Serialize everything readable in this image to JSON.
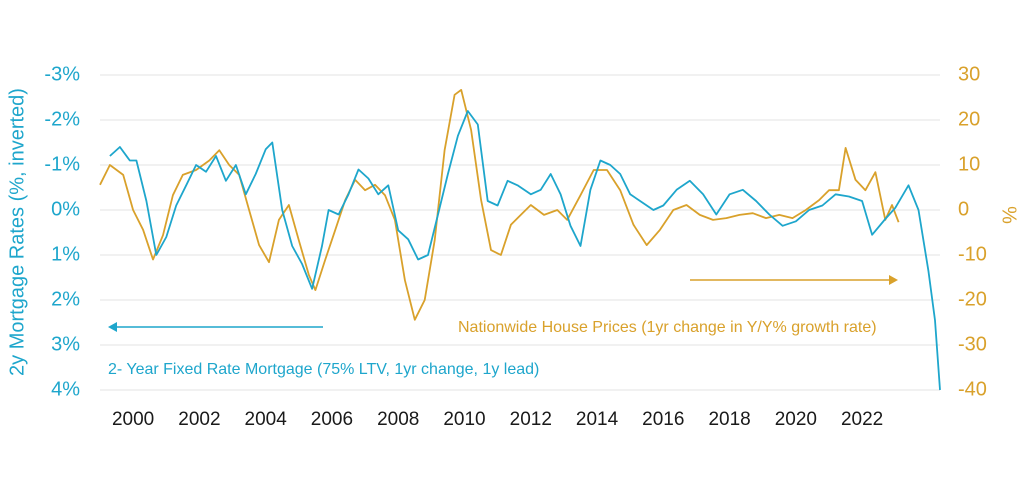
{
  "chart_data": {
    "type": "line",
    "y_label": "2y Mortgage Rates (%, inverted)",
    "y2_label": "%",
    "xlim": [
      1999,
      2024.35
    ],
    "xticks": [
      2000,
      2002,
      2004,
      2006,
      2008,
      2010,
      2012,
      2014,
      2016,
      2018,
      2020,
      2022
    ],
    "ylim": [
      -3,
      4
    ],
    "y_inverted": true,
    "yticks": [
      {
        "value": -3,
        "label": "-3%"
      },
      {
        "value": -2,
        "label": "-2%"
      },
      {
        "value": -1,
        "label": "-1%"
      },
      {
        "value": 0,
        "label": "0%"
      },
      {
        "value": 1,
        "label": "1%"
      },
      {
        "value": 2,
        "label": "2%"
      },
      {
        "value": 3,
        "label": "3%"
      },
      {
        "value": 4,
        "label": "4%"
      }
    ],
    "y2lim": [
      -40,
      30
    ],
    "y2ticks": [
      30,
      20,
      10,
      0,
      -10,
      -20,
      -30,
      -40
    ],
    "grid": true,
    "series": [
      {
        "name": "2- Year Fixed Rate Mortgage (75% LTV, 1yr change, 1y lead)",
        "color": "#1ea6cc",
        "x": [
          1999.3,
          1999.6,
          1999.9,
          2000.1,
          2000.4,
          2000.7,
          2001.0,
          2001.3,
          2001.6,
          2001.9,
          2002.2,
          2002.5,
          2002.8,
          2003.1,
          2003.4,
          2003.7,
          2004.0,
          2004.2,
          2004.5,
          2004.8,
          2005.1,
          2005.4,
          2005.7,
          2005.9,
          2006.2,
          2006.5,
          2006.8,
          2007.1,
          2007.4,
          2007.7,
          2008.0,
          2008.3,
          2008.6,
          2008.9,
          2009.2,
          2009.5,
          2009.8,
          2010.1,
          2010.4,
          2010.7,
          2011.0,
          2011.3,
          2011.6,
          2012.0,
          2012.3,
          2012.6,
          2012.9,
          2013.2,
          2013.5,
          2013.8,
          2014.1,
          2014.4,
          2014.7,
          2015.0,
          2015.3,
          2015.7,
          2016.0,
          2016.4,
          2016.8,
          2017.2,
          2017.6,
          2018.0,
          2018.4,
          2018.8,
          2019.2,
          2019.6,
          2020.0,
          2020.4,
          2020.8,
          2021.2,
          2021.6,
          2022.0,
          2022.3,
          2022.7,
          2023.0,
          2023.4,
          2023.7,
          2024.0,
          2024.2,
          2024.35
        ],
        "values": [
          -1.2,
          -1.4,
          -1.1,
          -1.1,
          -0.2,
          1.0,
          0.6,
          -0.1,
          -0.55,
          -1.0,
          -0.85,
          -1.2,
          -0.65,
          -1.0,
          -0.35,
          -0.8,
          -1.35,
          -1.5,
          0,
          0.8,
          1.2,
          1.75,
          0.8,
          0,
          0.1,
          -0.35,
          -0.9,
          -0.7,
          -0.35,
          -0.55,
          0.45,
          0.65,
          1.1,
          1.0,
          0.1,
          -0.8,
          -1.65,
          -2.2,
          -1.9,
          -0.2,
          -0.1,
          -0.65,
          -0.55,
          -0.35,
          -0.45,
          -0.8,
          -0.35,
          0.35,
          0.8,
          -0.45,
          -1.1,
          -1.0,
          -0.8,
          -0.35,
          -0.2,
          0,
          -0.1,
          -0.45,
          -0.65,
          -0.35,
          0.1,
          -0.35,
          -0.45,
          -0.2,
          0.1,
          0.35,
          0.25,
          0,
          -0.1,
          -0.35,
          -0.3,
          -0.2,
          0.55,
          0.2,
          -0.05,
          -0.55,
          0,
          1.35,
          2.45,
          4.0
        ]
      },
      {
        "name": "Nationwide House Prices (1yr change in Y/Y% growth rate)",
        "color": "#d9a12b",
        "axis": "y2",
        "x": [
          1999.0,
          1999.3,
          1999.7,
          2000.0,
          2000.3,
          2000.6,
          2000.9,
          2001.2,
          2001.5,
          2001.9,
          2002.3,
          2002.6,
          2002.9,
          2003.2,
          2003.5,
          2003.8,
          2004.1,
          2004.4,
          2004.7,
          2005.0,
          2005.3,
          2005.5,
          2005.8,
          2006.1,
          2006.4,
          2006.7,
          2007.0,
          2007.3,
          2007.6,
          2007.9,
          2008.2,
          2008.5,
          2008.8,
          2009.1,
          2009.4,
          2009.7,
          2009.9,
          2010.2,
          2010.5,
          2010.8,
          2011.1,
          2011.4,
          2011.7,
          2012.0,
          2012.4,
          2012.8,
          2013.1,
          2013.5,
          2013.9,
          2014.3,
          2014.7,
          2015.1,
          2015.5,
          2015.9,
          2016.3,
          2016.7,
          2017.1,
          2017.5,
          2017.9,
          2018.3,
          2018.7,
          2019.1,
          2019.5,
          2019.9,
          2020.3,
          2020.7,
          2021.0,
          2021.3,
          2021.5,
          2021.8,
          2022.1,
          2022.4,
          2022.7,
          2022.9,
          2023.1
        ],
        "values": [
          5.6,
          10,
          7.8,
          0,
          -4.4,
          -11,
          -5.6,
          3.3,
          7.8,
          8.9,
          11,
          13.3,
          10,
          7.8,
          0,
          -7.8,
          -11.6,
          -2.2,
          1.1,
          -6.7,
          -14.4,
          -17.8,
          -11,
          -4.4,
          2.2,
          6.7,
          4.4,
          5.6,
          3.3,
          -2.2,
          -15.6,
          -24.4,
          -20,
          -6.7,
          13.3,
          25.6,
          26.7,
          17.8,
          2.2,
          -8.9,
          -10,
          -3.3,
          -1.1,
          1.1,
          -1.1,
          0,
          -2.2,
          3.3,
          8.9,
          8.9,
          4.4,
          -3.3,
          -7.8,
          -4.4,
          0,
          1.1,
          -1.1,
          -2.2,
          -1.8,
          -1.1,
          -0.7,
          -1.8,
          -1.1,
          -1.8,
          0,
          2.2,
          4.4,
          4.4,
          13.8,
          6.7,
          4.4,
          8.4,
          -2.2,
          1.1,
          -2.7
        ]
      }
    ]
  }
}
